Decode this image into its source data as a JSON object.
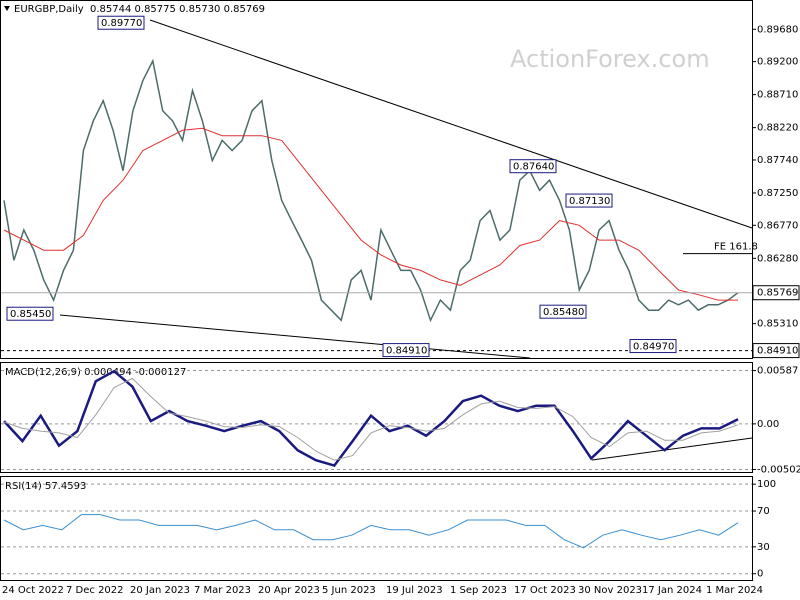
{
  "chart_data": [
    {
      "type": "line",
      "title": "EURGBP,Daily",
      "subtitle": "0.85744 0.85775 0.85730 0.85769",
      "watermark": "ActionForex.com",
      "ylim": [
        0.848,
        0.901
      ],
      "yticks": [
        {
          "value": 0.8968,
          "label": "0.89680"
        },
        {
          "value": 0.892,
          "label": "0.89200"
        },
        {
          "value": 0.8871,
          "label": "0.88710"
        },
        {
          "value": 0.8822,
          "label": "0.88220"
        },
        {
          "value": 0.8774,
          "label": "0.87740"
        },
        {
          "value": 0.8725,
          "label": "0.87250"
        },
        {
          "value": 0.8677,
          "label": "0.86770"
        },
        {
          "value": 0.8628,
          "label": "0.86280"
        },
        {
          "value": 0.8531,
          "label": "0.85310"
        }
      ],
      "last_price": {
        "value": 0.85769,
        "label": "0.85769"
      },
      "support": {
        "value": 0.8491,
        "label": "0.84910"
      },
      "fe": {
        "value": 0.8635,
        "label": "FE 161.8"
      },
      "annotations": [
        {
          "value": 0.8977,
          "label": "0.89770"
        },
        {
          "value": 0.8545,
          "label": "0.85450"
        },
        {
          "value": 0.8491,
          "label": "0.84910"
        },
        {
          "value": 0.8764,
          "label": "0.87640"
        },
        {
          "value": 0.8713,
          "label": "0.87130"
        },
        {
          "value": 0.8548,
          "label": "0.85480"
        },
        {
          "value": 0.8497,
          "label": "0.84970"
        }
      ],
      "series": [
        {
          "color": "#4d6b6b",
          "values": [
            0.8714,
            0.8625,
            0.867,
            0.864,
            0.8596,
            0.8566,
            0.861,
            0.864,
            0.8788,
            0.8832,
            0.8862,
            0.8818,
            0.8758,
            0.8847,
            0.8892,
            0.8921,
            0.8847,
            0.8832,
            0.8803,
            0.8877,
            0.8832,
            0.8773,
            0.8803,
            0.8788,
            0.8803,
            0.8847,
            0.8862,
            0.8773,
            0.8714,
            0.8684,
            0.8655,
            0.8625,
            0.8566,
            0.8551,
            0.8536,
            0.8596,
            0.861,
            0.8566,
            0.867,
            0.864,
            0.861,
            0.861,
            0.8581,
            0.8536,
            0.8566,
            0.8551,
            0.861,
            0.8625,
            0.8684,
            0.8699,
            0.8655,
            0.867,
            0.8744,
            0.8758,
            0.8729,
            0.8744,
            0.8714,
            0.867,
            0.8581,
            0.861,
            0.867,
            0.8684,
            0.864,
            0.861,
            0.8566,
            0.8551,
            0.8551,
            0.8566,
            0.8559,
            0.8566,
            0.8551,
            0.8559,
            0.8559,
            0.8566,
            0.8577
          ]
        },
        {
          "color": "#e03030",
          "values": [
            0.867,
            0.8655,
            0.864,
            0.864,
            0.8662,
            0.8714,
            0.8744,
            0.8788,
            0.8803,
            0.8818,
            0.8821,
            0.881,
            0.881,
            0.881,
            0.8803,
            0.8766,
            0.8729,
            0.8692,
            0.8655,
            0.8633,
            0.8618,
            0.861,
            0.8596,
            0.8588,
            0.8603,
            0.8618,
            0.8647,
            0.8655,
            0.8684,
            0.8677,
            0.8655,
            0.8655,
            0.864,
            0.861,
            0.8581,
            0.8574,
            0.8566,
            0.8566
          ]
        }
      ]
    },
    {
      "type": "line",
      "title": "MACD(12,26,9) 0.000494 -0.000127",
      "ylim": [
        -0.0053,
        0.0067
      ],
      "grid": "dashed",
      "yticks": [
        {
          "value": 0.00587,
          "label": "0.00587"
        },
        {
          "value": 0,
          "label": "0.00"
        },
        {
          "value": -0.005021,
          "label": "-0.005021"
        }
      ],
      "series": [
        {
          "color": "#1a1a80",
          "values": [
            0.0003,
            -0.0019,
            0.0009,
            -0.0024,
            -0.0008,
            0.0047,
            0.0058,
            0.0041,
            0.0003,
            0.0014,
            0.0003,
            -0.0002,
            -0.0008,
            -0.0002,
            0.0003,
            -0.0008,
            -0.0029,
            -0.004,
            -0.0046,
            -0.0019,
            0.0009,
            -0.0008,
            -0.0002,
            -0.0013,
            0.0003,
            0.0025,
            0.0031,
            0.002,
            0.0014,
            0.002,
            0.002,
            -0.0008,
            -0.0038,
            -0.0019,
            0.0003,
            -0.0013,
            -0.0029,
            -0.0013,
            -0.0005,
            -0.0005,
            0.0005
          ]
        },
        {
          "color": "#a0a0a0",
          "values": [
            0.0002,
            -0.0005,
            -0.0008,
            -0.001,
            -0.0015,
            0.001,
            0.004,
            0.005,
            0.003,
            0.0012,
            0.0008,
            0.0003,
            -0.0003,
            -0.0004,
            -0.0001,
            -0.0003,
            -0.0015,
            -0.003,
            -0.004,
            -0.0035,
            -0.001,
            -0.0002,
            -0.0004,
            -0.0008,
            -0.0005,
            0.001,
            0.0022,
            0.0025,
            0.0018,
            0.0017,
            0.0019,
            0.0008,
            -0.0015,
            -0.0025,
            -0.001,
            -0.0008,
            -0.0018,
            -0.0018,
            -0.001,
            -0.0008,
            -0.0001
          ]
        }
      ]
    },
    {
      "type": "line",
      "title": "RSI(14) 57.4593",
      "ylim": [
        -7,
        108
      ],
      "grid": "dashed",
      "yticks": [
        100,
        70,
        30,
        0
      ],
      "xtick_labels": [
        "24 Oct 2022",
        "7 Dec 2022",
        "20 Jan 2023",
        "7 Mar 2023",
        "20 Apr 2023",
        "5 Jun 2023",
        "19 Jul 2023",
        "1 Sep 2023",
        "17 Oct 2023",
        "30 Nov 2023",
        "17 Jan 2024",
        "1 Mar 2024"
      ],
      "series": [
        {
          "color": "#3a8fd0",
          "values": [
            60,
            49,
            54,
            49,
            66,
            66,
            60,
            60,
            54,
            54,
            54,
            49,
            54,
            60,
            49,
            49,
            38,
            38,
            43,
            54,
            49,
            49,
            43,
            49,
            60,
            60,
            60,
            54,
            54,
            38,
            29,
            43,
            49,
            43,
            38,
            43,
            49,
            43,
            57
          ]
        }
      ]
    }
  ]
}
